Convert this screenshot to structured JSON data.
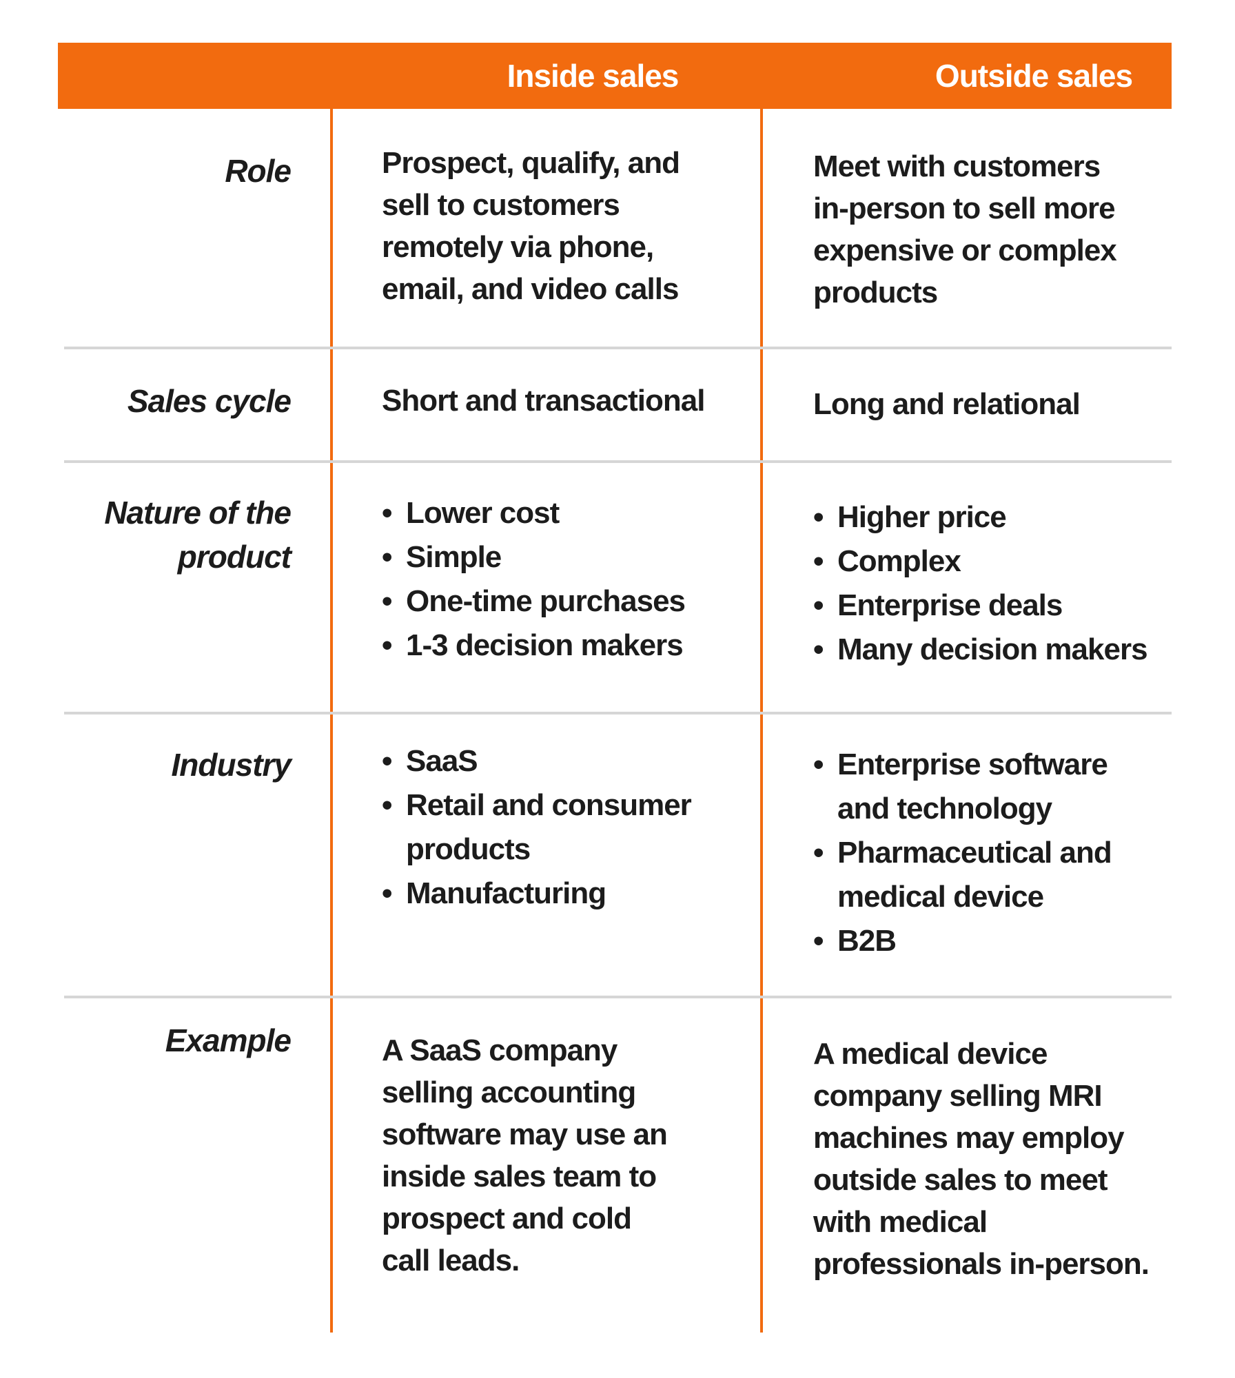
{
  "colors": {
    "accent": "#f26b0f",
    "divider": "#d6d6d6",
    "text": "#1c1c1c"
  },
  "header": {
    "inside_title": "Inside sales",
    "outside_title": "Outside sales"
  },
  "rows": {
    "role": {
      "label": "Role",
      "inside": "Prospect, qualify, and\nsell to customers\nremotely via phone,\nemail, and video calls",
      "outside": "Meet with customers\nin-person to sell more\nexpensive or complex\nproducts"
    },
    "sales_cycle": {
      "label": "Sales cycle",
      "inside": "Short and transactional",
      "outside": "Long and relational"
    },
    "nature": {
      "label": "Nature of the\nproduct",
      "inside": [
        "Lower cost",
        "Simple",
        "One-time purchases",
        "1-3 decision makers"
      ],
      "outside": [
        "Higher price",
        "Complex",
        "Enterprise deals",
        "Many decision makers"
      ]
    },
    "industry": {
      "label": "Industry",
      "inside": [
        "SaaS",
        "Retail and consumer\nproducts",
        "Manufacturing"
      ],
      "outside": [
        "Enterprise software\nand technology",
        "Pharmaceutical and\nmedical device",
        "B2B"
      ]
    },
    "example": {
      "label": "Example",
      "inside": "A SaaS company\nselling accounting\nsoftware may use an\ninside sales team to\nprospect and cold\ncall leads.",
      "outside": "A medical device\ncompany selling MRI\nmachines may employ\noutside sales to meet\nwith medical\nprofessionals in-person."
    }
  }
}
